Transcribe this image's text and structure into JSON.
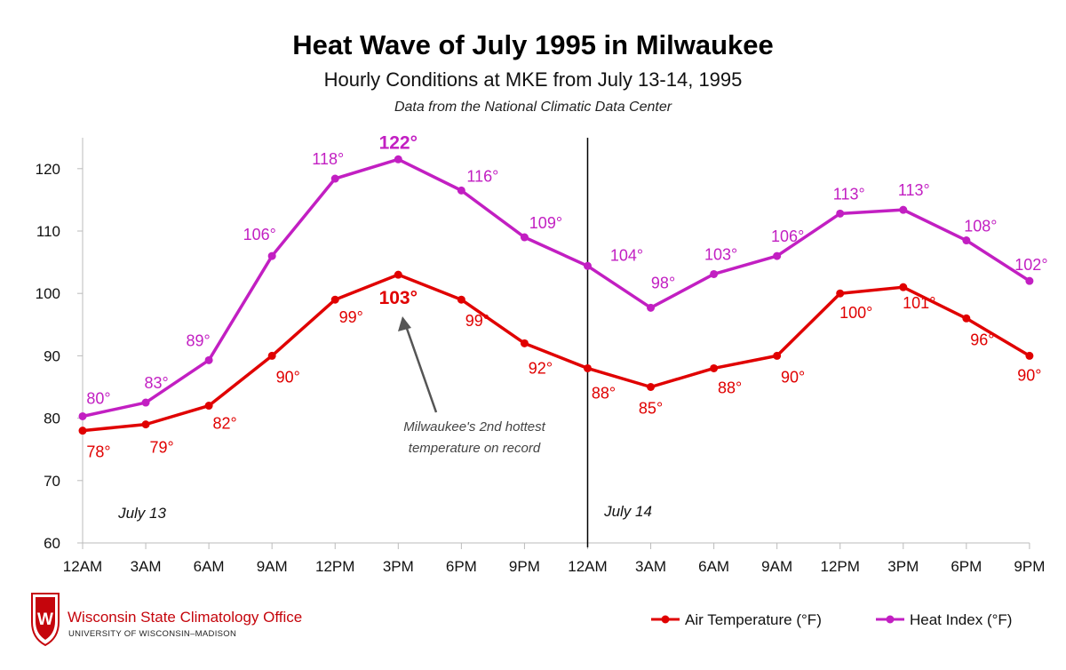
{
  "title": "Heat Wave of July 1995 in Milwaukee",
  "subtitle": "Hourly Conditions at MKE from July 13-14, 1995",
  "source_note": "Data from the National Climatic Data Center",
  "annotation": {
    "line1": "Milwaukee's 2nd hottest",
    "line2": "temperature on record"
  },
  "date_labels": [
    "July 13",
    "July 14"
  ],
  "branding": {
    "org_name": "Wisconsin State Climatology Office",
    "org_sub": "UNIVERSITY OF WISCONSIN–MADISON",
    "crest_letter": "W"
  },
  "colors": {
    "heat_index": "#c21fc2",
    "air_temp": "#e00000",
    "axis": "#bbbbbb",
    "divider": "#000000",
    "arrow": "#555555",
    "brand": "#c5050c"
  },
  "chart_data": {
    "type": "line",
    "categories": [
      "12AM",
      "3AM",
      "6AM",
      "9AM",
      "12PM",
      "3PM",
      "6PM",
      "9PM",
      "12AM",
      "3AM",
      "6AM",
      "9AM",
      "12PM",
      "3PM",
      "6PM",
      "9PM"
    ],
    "ylim": [
      60,
      125
    ],
    "yticks": [
      60,
      70,
      80,
      90,
      100,
      110,
      120
    ],
    "legend_position": "bottom-right",
    "day_divider_index": 8,
    "series": [
      {
        "name": "Air Temperature (°F)",
        "key": "air_temp",
        "values": [
          78,
          79,
          82,
          90,
          99,
          103,
          99,
          92,
          88,
          85,
          88,
          90,
          100,
          101,
          96,
          90
        ],
        "labels": [
          "78°",
          "79°",
          "82°",
          "90°",
          "99°",
          "103°",
          "99°",
          "92°",
          "88°",
          "85°",
          "88°",
          "90°",
          "100°",
          "101°",
          "96°",
          "90°"
        ],
        "peak_index": 5
      },
      {
        "name": "Heat Index (°F)",
        "key": "heat_index",
        "values": [
          80.3,
          82.5,
          89.3,
          106,
          118.4,
          121.5,
          116.5,
          109,
          104.4,
          97.7,
          103.1,
          106,
          112.8,
          113.4,
          108.5,
          102
        ],
        "labels": [
          "80°",
          "83°",
          "89°",
          "106°",
          "118°",
          "122°",
          "116°",
          "109°",
          "104°",
          "98°",
          "103°",
          "106°",
          "113°",
          "113°",
          "108°",
          "102°"
        ],
        "peak_index": 5
      }
    ]
  }
}
